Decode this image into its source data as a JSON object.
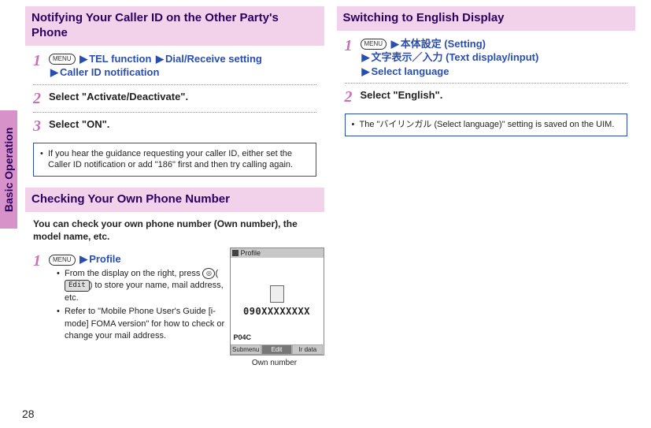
{
  "sideTab": "Basic Operation",
  "pageNumber": "28",
  "left": {
    "section1": {
      "title": "Notifying Your Caller ID on the Other Party's Phone",
      "step1": {
        "menu": "MENU",
        "seg1": "TEL function",
        "seg2": "Dial/Receive setting",
        "seg3": "Caller ID notification"
      },
      "step2": "Select \"Activate/Deactivate\".",
      "step3": "Select \"ON\".",
      "note": "If you hear the guidance requesting your caller ID, either set the Caller ID notification or add \"186\" first and then try calling again."
    },
    "section2": {
      "title": "Checking Your Own Phone Number",
      "intro": "You can check your own phone number (Own number), the model name, etc.",
      "step1": {
        "menu": "MENU",
        "label": "Profile"
      },
      "bullet1a": "From the display on the right, press ",
      "camera": "◎",
      "edit": "Edit",
      "bullet1b": " to store your name, mail address, etc.",
      "bullet2": "Refer to \"Mobile Phone User's Guide [i-mode] FOMA version\" for how to check or change your mail address.",
      "phone": {
        "title": "Profile",
        "number": "090XXXXXXXX",
        "model": "P04C",
        "sk1": "Submenu",
        "sk2": "Edit",
        "sk3": "Ir data"
      },
      "caption": "Own number"
    }
  },
  "right": {
    "section1": {
      "title": "Switching to English Display",
      "step1": {
        "menu": "MENU",
        "seg1": "本体設定 (Setting)",
        "seg2": "文字表示／入力 (Text display/input)",
        "seg3": "Select language"
      },
      "step2": "Select \"English\".",
      "note": "The \"バイリンガル (Select language)\" setting is saved on the UIM."
    }
  }
}
